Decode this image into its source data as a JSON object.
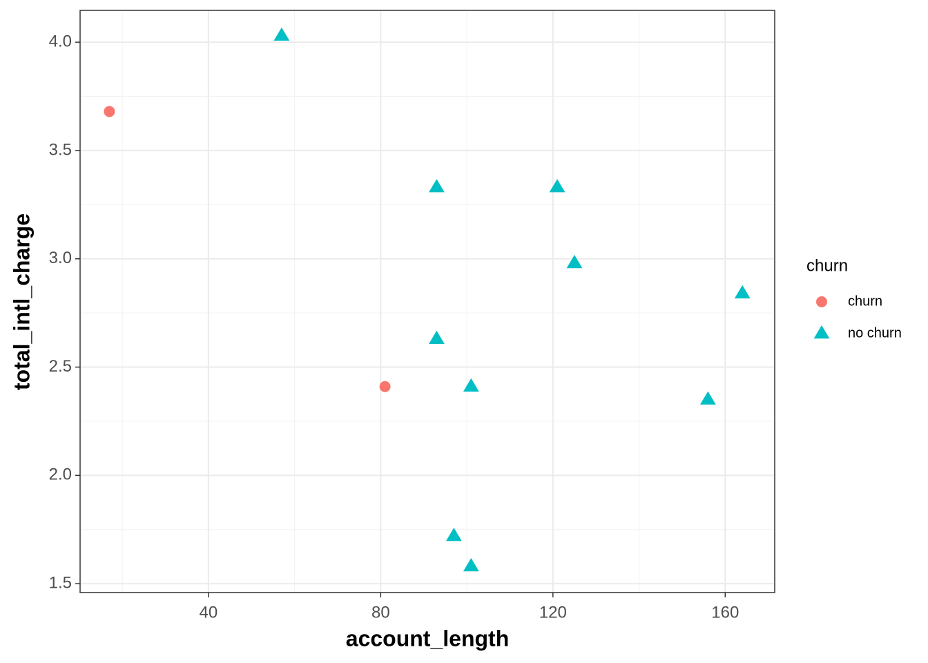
{
  "chart_data": {
    "type": "scatter",
    "x_label": "account_length",
    "y_label": "total_intl_charge",
    "legend_title": "churn",
    "legend": "right",
    "grid": true,
    "xlim": [
      10.2,
      171.5
    ],
    "ylim": [
      1.459,
      4.147
    ],
    "xticks": [
      40,
      80,
      120,
      160
    ],
    "yticks": [
      {
        "value": 1.5,
        "label": "1.5"
      },
      {
        "value": 2,
        "label": "2.0"
      },
      {
        "value": 2.5,
        "label": "2.5"
      },
      {
        "value": 3,
        "label": "3.0"
      },
      {
        "value": 3.5,
        "label": "3.5"
      },
      {
        "value": 4,
        "label": "4.0"
      }
    ],
    "xminor_ticks": [
      20,
      60,
      100,
      140
    ],
    "yminor_ticks": [
      1.75,
      2.25,
      2.75,
      3.25,
      3.75
    ],
    "series": [
      {
        "name": "churn",
        "color": "#f8766d",
        "shape": "circle",
        "x": [
          17,
          81
        ],
        "y": [
          3.68,
          2.41
        ]
      },
      {
        "name": "no churn",
        "color": "#00bfc4",
        "shape": "triangle",
        "x": [
          57,
          93,
          121,
          125,
          164,
          93,
          101,
          156,
          97,
          101
        ],
        "y": [
          4.03,
          3.33,
          3.33,
          2.98,
          2.84,
          2.63,
          2.41,
          2.35,
          1.72,
          1.58
        ]
      }
    ]
  }
}
